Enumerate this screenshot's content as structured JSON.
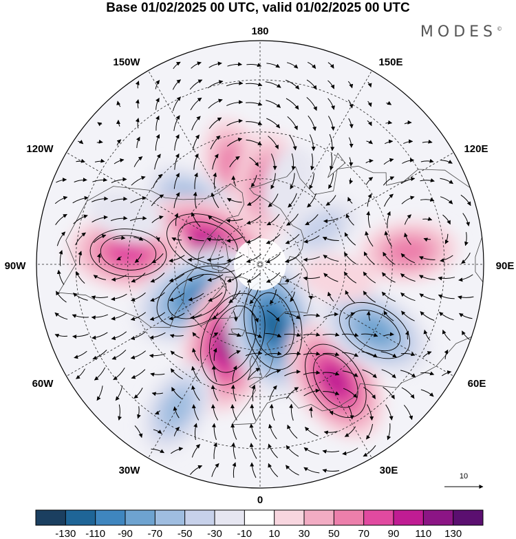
{
  "header": {
    "title": "Base 01/02/2025 00 UTC, valid 01/02/2025 00 UTC",
    "brand": "MODES",
    "brand_mark": "©"
  },
  "map": {
    "projection": "north-polar-stereographic",
    "longitude_labels": {
      "top": "180",
      "top_left": "150W",
      "top_right": "150E",
      "upper_left": "120W",
      "upper_right": "120E",
      "left": "90W",
      "right": "90E",
      "lower_left": "60W",
      "lower_right": "60E",
      "bottom_left": "30W",
      "bottom_right": "30E",
      "bottom": "0"
    },
    "vector_reference": {
      "label": "10"
    },
    "field_centers": [
      {
        "lon": -165,
        "lat": 55,
        "value": 60
      },
      {
        "lon": 175,
        "lat": 62,
        "value": 70
      },
      {
        "lon": -130,
        "lat": 60,
        "value": -80
      },
      {
        "lon": -112,
        "lat": 70,
        "value": 110
      },
      {
        "lon": -95,
        "lat": 45,
        "value": 90
      },
      {
        "lon": -63,
        "lat": 65,
        "value": -110
      },
      {
        "lon": -20,
        "lat": 62,
        "value": 130
      },
      {
        "lon": 12,
        "lat": 68,
        "value": -120
      },
      {
        "lon": 33,
        "lat": 43,
        "value": 100
      },
      {
        "lon": 60,
        "lat": 45,
        "value": -90
      },
      {
        "lon": 95,
        "lat": 40,
        "value": 60
      },
      {
        "lon": 120,
        "lat": 65,
        "value": -40
      },
      {
        "lon": 160,
        "lat": 60,
        "value": -30
      },
      {
        "lon": 80,
        "lat": 62,
        "value": 25
      },
      {
        "lon": -30,
        "lat": 35,
        "value": -60
      },
      {
        "lon": -110,
        "lat": 42,
        "value": -30
      }
    ]
  },
  "colorbar": {
    "tick_labels": [
      "-130",
      "-110",
      "-90",
      "-70",
      "-50",
      "-30",
      "-10",
      "10",
      "30",
      "50",
      "70",
      "90",
      "110",
      "130"
    ],
    "colors": [
      "#1b3f60",
      "#1f6597",
      "#3f86bf",
      "#6ea3d0",
      "#9fbde0",
      "#c7d1ea",
      "#e6e6f1",
      "#ffffff",
      "#f8d6df",
      "#f2acc3",
      "#ec7fab",
      "#e14aa0",
      "#c01c93",
      "#8c1585",
      "#5b0f70"
    ]
  },
  "colors": {
    "coast": "#444444",
    "grid": "#222222",
    "arrow": "#000000"
  }
}
